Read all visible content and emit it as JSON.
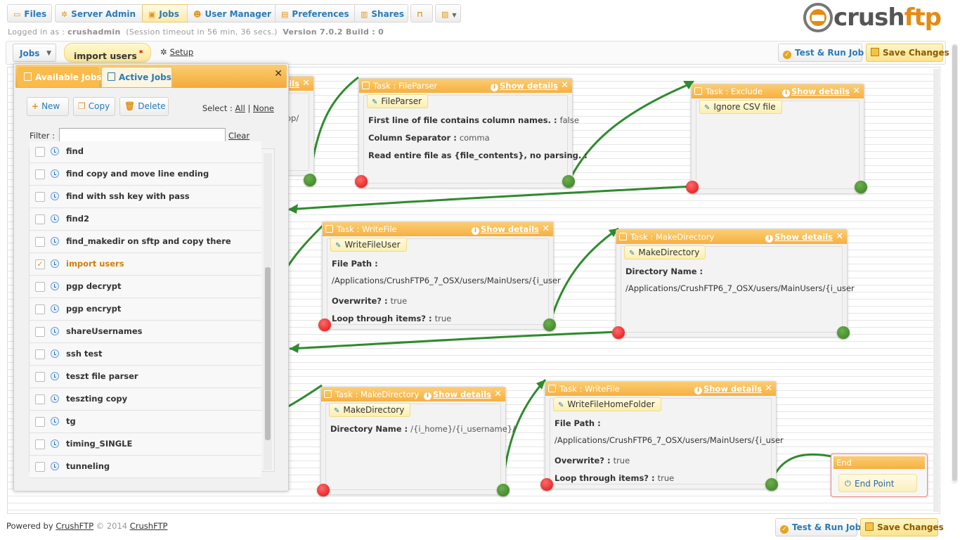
{
  "nav": {
    "items": [
      {
        "label": "Files",
        "icon": "folder-icon"
      },
      {
        "label": "Server Admin",
        "icon": "gear-icon"
      },
      {
        "label": "Jobs",
        "icon": "jobs-icon",
        "active": true
      },
      {
        "label": "User Manager",
        "icon": "user-icon"
      },
      {
        "label": "Preferences",
        "icon": "preferences-icon"
      },
      {
        "label": "Shares",
        "icon": "shares-icon"
      }
    ],
    "logged_in_prefix": "Logged in as :",
    "username": "crushadmin",
    "session_text": "(Session timeout in 56 min, 36 secs.)",
    "version": "Version 7.0.2 Build : 0"
  },
  "logo": {
    "text_a": "crush",
    "text_b": "ftp"
  },
  "toolbar": {
    "jobs_dropdown": "Jobs",
    "current_job": "import users",
    "unsaved_marker": "*",
    "setup_label": "Setup",
    "test_run_label": "Test & Run Job",
    "save_label": "Save Changes"
  },
  "panel": {
    "tab_available": "Available Jobs",
    "tab_active": "Active Jobs",
    "new_label": "New",
    "copy_label": "Copy",
    "delete_label": "Delete",
    "select_label": "Select :",
    "select_all": "All",
    "select_none": "None",
    "filter_label": "Filter :",
    "filter_value": "",
    "clear_label": "Clear",
    "jobs": [
      {
        "name": "find",
        "checked": false
      },
      {
        "name": "find copy and move line ending",
        "checked": false
      },
      {
        "name": "find with ssh key with pass",
        "checked": false
      },
      {
        "name": "find2",
        "checked": false
      },
      {
        "name": "find_makedir on sftp and copy there",
        "checked": false
      },
      {
        "name": "import users",
        "checked": true
      },
      {
        "name": "pgp decrypt",
        "checked": false
      },
      {
        "name": "pgp encrypt",
        "checked": false
      },
      {
        "name": "shareUsernames",
        "checked": false
      },
      {
        "name": "ssh test",
        "checked": false
      },
      {
        "name": "teszt file parser",
        "checked": false
      },
      {
        "name": "teszting copy",
        "checked": false
      },
      {
        "name": "tg",
        "checked": false
      },
      {
        "name": "timing_SINGLE",
        "checked": false
      },
      {
        "name": "tunneling",
        "checked": false
      }
    ]
  },
  "tasks": {
    "show_details": "Show details",
    "partial_first": {
      "show_details": "ils",
      "row_value": "op/"
    },
    "fileparser": {
      "title": "Task : FileParser",
      "name": "FileParser",
      "r1_label": "First line of file contains column names. :",
      "r1_value": "false",
      "r2_label": "Column Separator :",
      "r2_value": "comma",
      "r3_label": "Read entire file as {file_contents}, no parsing. :"
    },
    "exclude": {
      "title": "Task : Exclude",
      "name": "Ignore CSV file"
    },
    "writefile1": {
      "title": "Task : WriteFile",
      "name": "WriteFileUser",
      "r1_label": "File Path :",
      "r1_value": "/Applications/CrushFTP6_7_OSX/users/MainUsers/{i_user",
      "r2_label": "Overwrite? :",
      "r2_value": "true",
      "r3_label": "Loop through items? :",
      "r3_value": "true"
    },
    "makedir1": {
      "title": "Task : MakeDirectory",
      "name": "MakeDirectory",
      "r1_label": "Directory Name :",
      "r1_value": "/Applications/CrushFTP6_7_OSX/users/MainUsers/{i_user"
    },
    "makedir2": {
      "title": "Task : MakeDirectory",
      "name": "MakeDirectory",
      "r1_label": "Directory Name :",
      "r1_value": "/{i_home}/{i_username}/"
    },
    "writefile2": {
      "title": "Task : WriteFile",
      "name": "WriteFileHomeFolder",
      "r1_label": "File Path :",
      "r1_value": "/Applications/CrushFTP6_7_OSX/users/MainUsers/{i_user",
      "r2_label": "Overwrite? :",
      "r2_value": "true",
      "r3_label": "Loop through items? :",
      "r3_value": "true"
    },
    "end": {
      "title": "End",
      "point_label": "End Point"
    }
  },
  "footer": {
    "powered_by": "Powered by",
    "brand": "CrushFTP",
    "copyright": "© 2014",
    "brand2": "CrushFTP",
    "test_run_label": "Test & Run Job",
    "save_label": "Save Changes"
  },
  "colors": {
    "accent": "#f6b040",
    "link": "#2a7bb8",
    "wire": "#2e8b2e",
    "success_port": "#3b7d23",
    "fail_port": "#dd1111"
  }
}
